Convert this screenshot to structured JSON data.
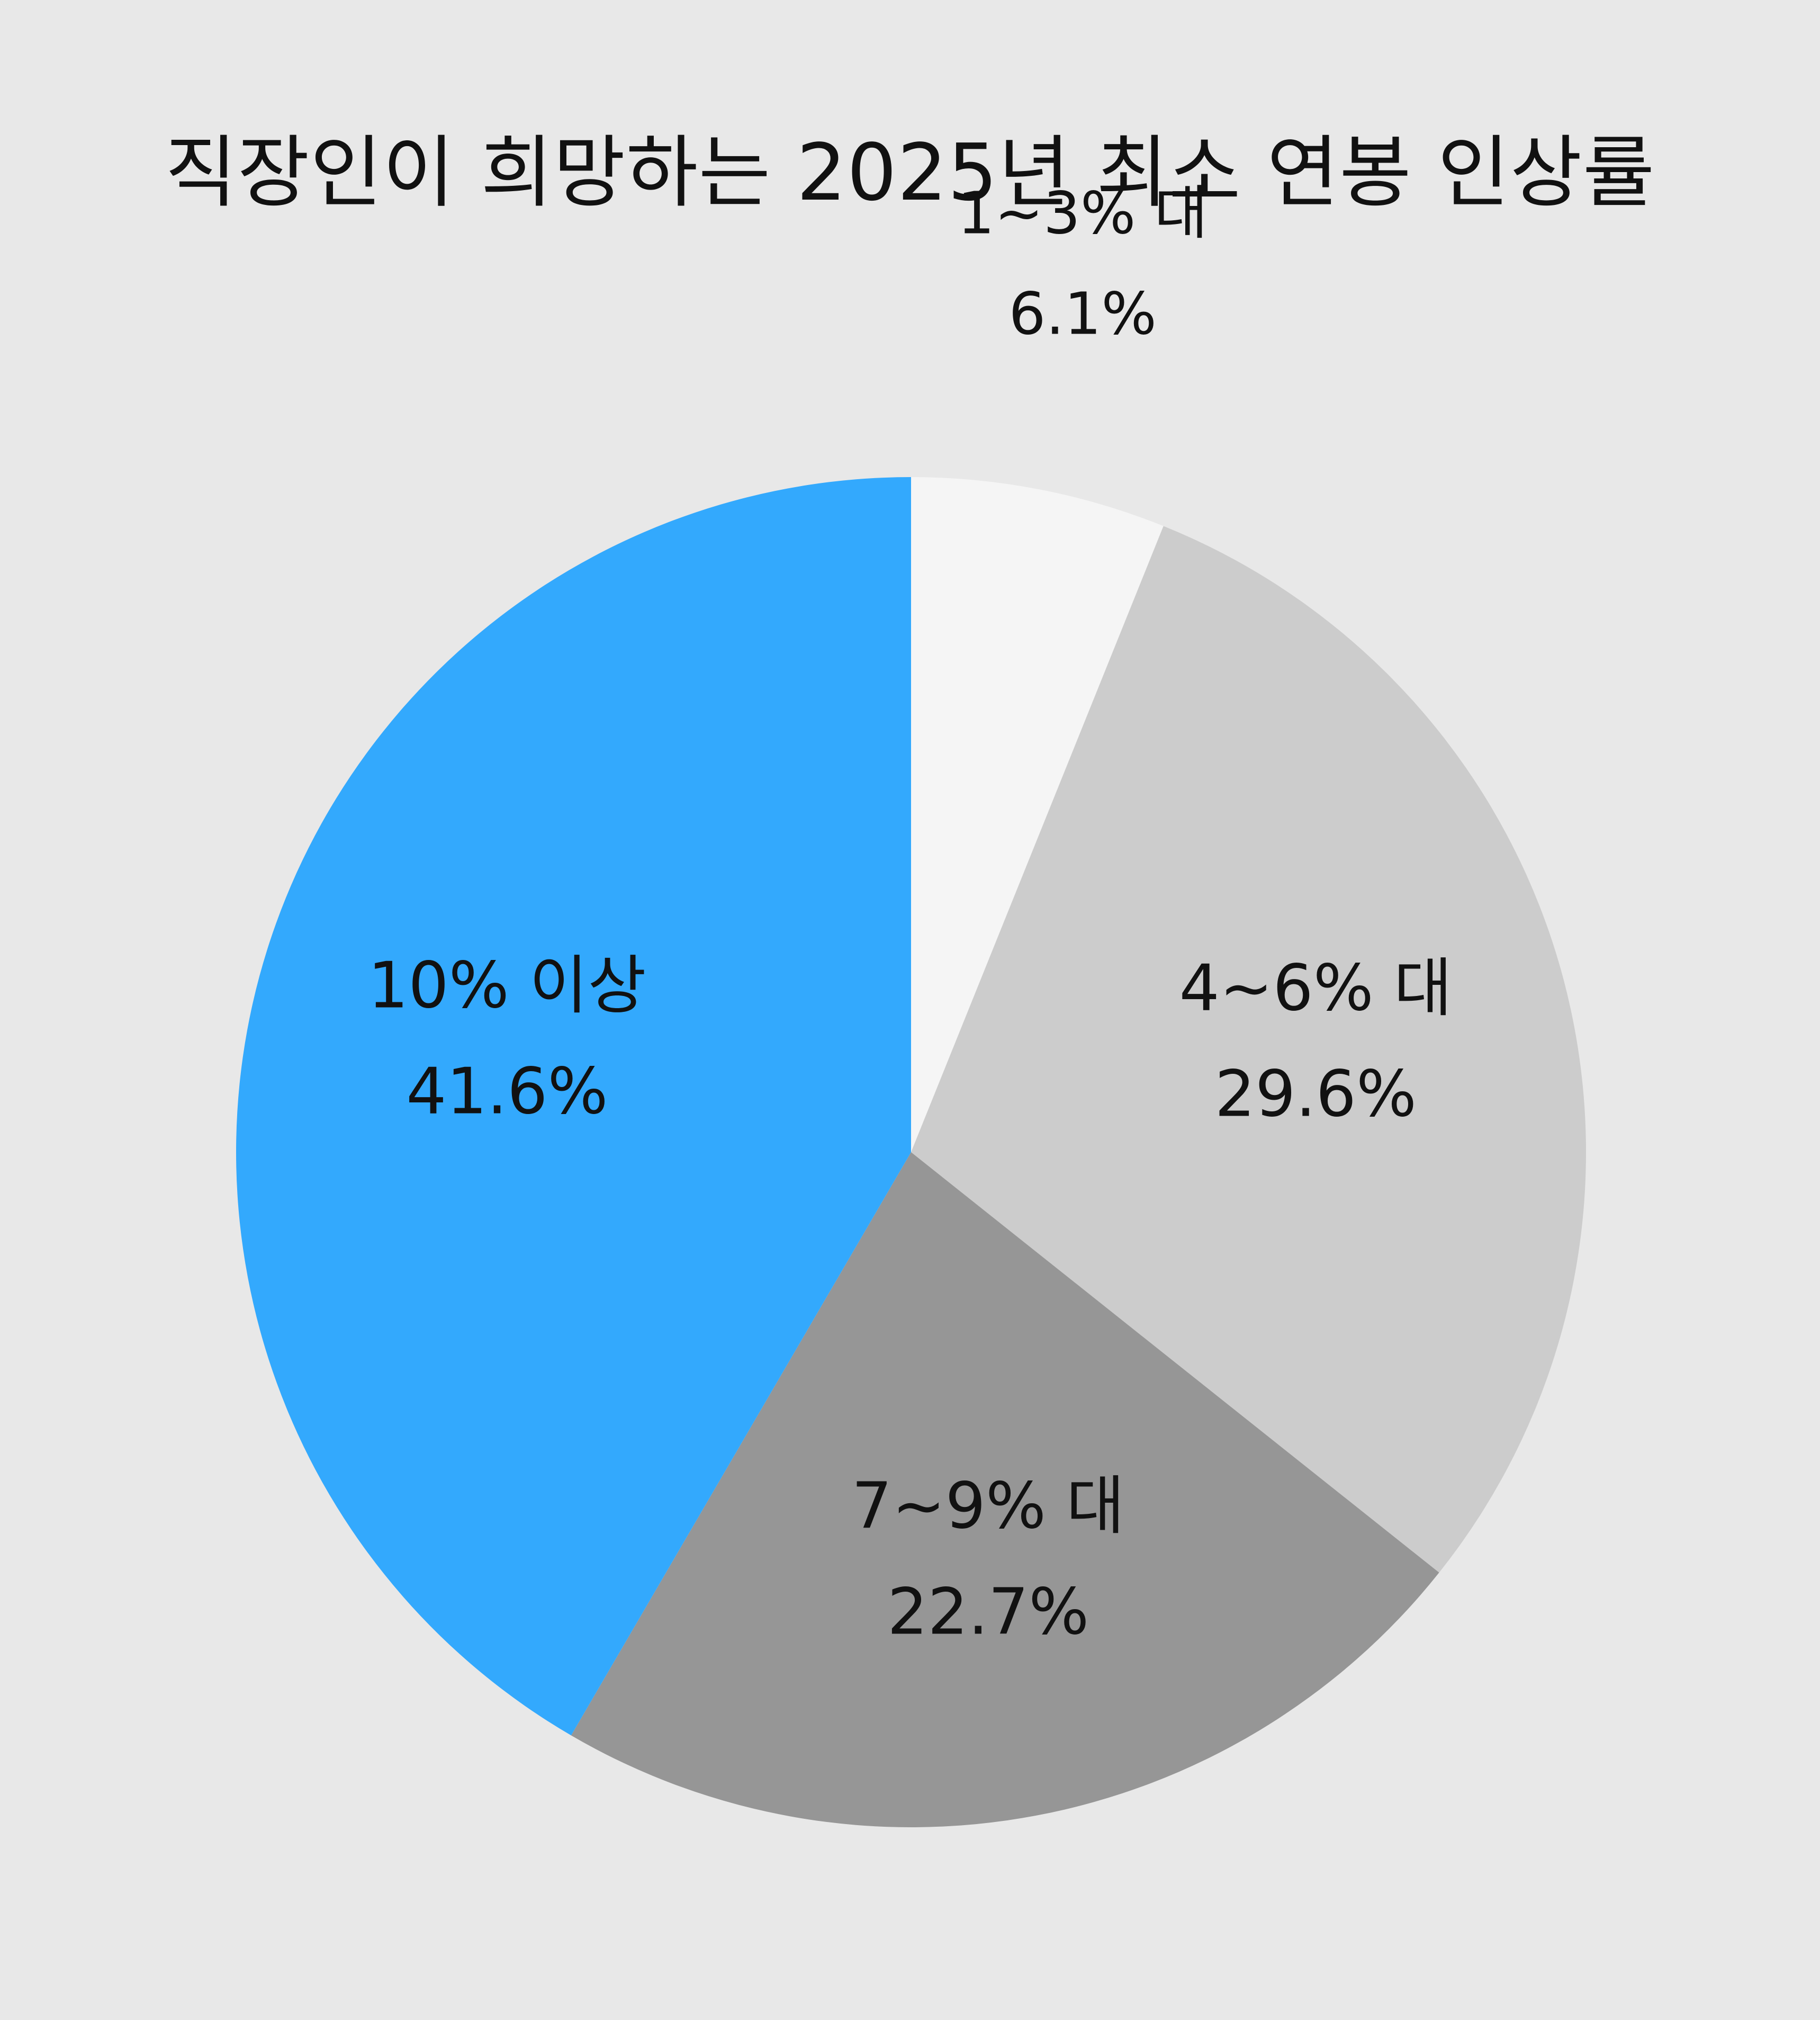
{
  "chart_data": {
    "type": "pie",
    "title": "직장인이 희망하는 2025년 최소 연봉 인상률",
    "start_angle_deg": 0,
    "direction": "clockwise",
    "categories": [
      "1~3% 대",
      "4~6% 대",
      "7~9% 대",
      "10% 이상"
    ],
    "values": [
      6.1,
      29.6,
      22.7,
      41.6
    ],
    "value_labels": [
      "6.1%",
      "29.6%",
      "22.7%",
      "41.6%"
    ],
    "colors": [
      "#f5f5f5",
      "#cccccc",
      "#969696",
      "#33a9fd"
    ],
    "label_positions": [
      "outside",
      "inside",
      "inside",
      "inside"
    ],
    "legend": "none"
  }
}
